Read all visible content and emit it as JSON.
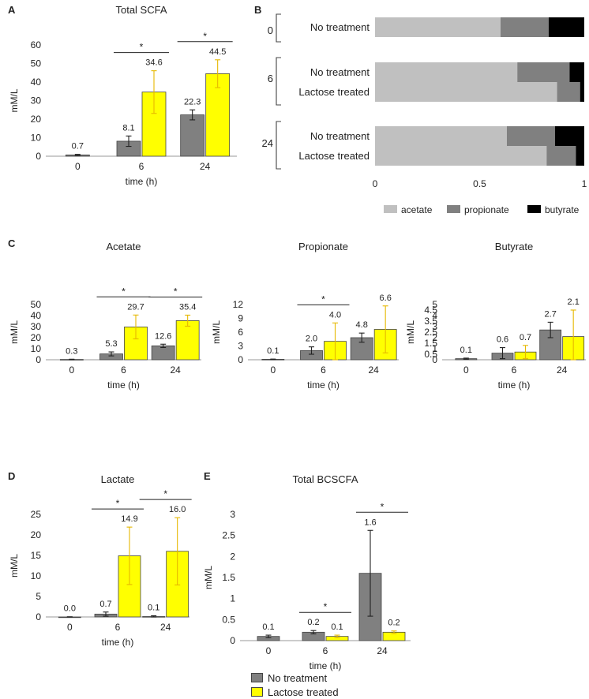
{
  "panels": {
    "A": "A",
    "B": "B",
    "C": "C",
    "D": "D",
    "E": "E"
  },
  "colors": {
    "no_treatment": "#808080",
    "lactose_treated": "#ffff00",
    "acetate": "#c0c0c0",
    "propionate": "#808080",
    "butyrate": "#000000",
    "err_lactose": "#e6b800"
  },
  "legend": {
    "no_treatment": "No treatment",
    "lactose_treated": "Lactose treated"
  },
  "chart_data": [
    {
      "id": "total_scfa",
      "type": "bar",
      "title": "Total SCFA",
      "xlabel": "time (h)",
      "ylabel": "mM/L",
      "categories": [
        "0",
        "6",
        "24"
      ],
      "ylim": [
        0,
        60
      ],
      "yticks": [
        "0",
        "10",
        "20",
        "30",
        "40",
        "50",
        "60"
      ],
      "series": [
        {
          "name": "No treatment",
          "values": [
            0.7,
            8.1,
            22.3
          ],
          "errors": [
            0.3,
            2.8,
            2.7
          ],
          "labels": [
            "0.7",
            "8.1",
            "22.3"
          ]
        },
        {
          "name": "Lactose treated",
          "values": [
            null,
            34.6,
            44.5
          ],
          "errors": [
            null,
            11.5,
            7.5
          ],
          "labels": [
            "",
            "34.6",
            "44.5"
          ]
        }
      ],
      "significance": [
        "6",
        "24"
      ],
      "sig_marker": "*"
    },
    {
      "id": "scfa_proportions",
      "type": "bar",
      "stacked": "horizontal",
      "rows": [
        {
          "group": "0",
          "label": "No treatment",
          "acetate": 0.6,
          "propionate": 0.23,
          "butyrate": 0.17
        },
        {
          "group": "6",
          "label": "No treatment",
          "acetate": 0.68,
          "propionate": 0.25,
          "butyrate": 0.07
        },
        {
          "group": "6",
          "label": "Lactose treated",
          "acetate": 0.87,
          "propionate": 0.11,
          "butyrate": 0.02
        },
        {
          "group": "24",
          "label": "No treatment",
          "acetate": 0.63,
          "propionate": 0.23,
          "butyrate": 0.14
        },
        {
          "group": "24",
          "label": "Lactose treated",
          "acetate": 0.82,
          "propionate": 0.14,
          "butyrate": 0.04
        }
      ],
      "groups": [
        "0",
        "6",
        "24"
      ],
      "xlim": [
        0,
        1
      ],
      "xticks": [
        "0",
        "0.5",
        "1"
      ],
      "legend": [
        "acetate",
        "propionate",
        "butyrate"
      ]
    },
    {
      "id": "acetate",
      "type": "bar",
      "title": "Acetate",
      "xlabel": "time (h)",
      "ylabel": "mM/L",
      "categories": [
        "0",
        "6",
        "24"
      ],
      "ylim": [
        0,
        50
      ],
      "yticks": [
        "0",
        "10",
        "20",
        "30",
        "40",
        "50"
      ],
      "series": [
        {
          "name": "No treatment",
          "values": [
            0.3,
            5.3,
            12.6
          ],
          "errors": [
            0.2,
            1.8,
            1.5
          ],
          "labels": [
            "0.3",
            "5.3",
            "12.6"
          ]
        },
        {
          "name": "Lactose treated",
          "values": [
            null,
            29.7,
            35.4
          ],
          "errors": [
            null,
            10.8,
            5.0
          ],
          "labels": [
            "",
            "29.7",
            "35.4"
          ]
        }
      ],
      "significance": [
        "6",
        "24"
      ],
      "sig_marker": "*"
    },
    {
      "id": "propionate",
      "type": "bar",
      "title": "Propionate",
      "xlabel": "time (h)",
      "ylabel": "mM/L",
      "categories": [
        "0",
        "6",
        "24"
      ],
      "ylim": [
        0,
        12
      ],
      "yticks": [
        "0",
        "3",
        "6",
        "9",
        "12"
      ],
      "series": [
        {
          "name": "No treatment",
          "values": [
            0.1,
            2.0,
            4.8
          ],
          "errors": [
            0.05,
            0.8,
            1.0
          ],
          "labels": [
            "0.1",
            "2.0",
            "4.8"
          ]
        },
        {
          "name": "Lactose treated",
          "values": [
            null,
            4.0,
            6.6
          ],
          "errors": [
            null,
            4.0,
            5.1
          ],
          "labels": [
            "",
            "4.0",
            "6.6"
          ]
        }
      ],
      "significance": [
        "6"
      ],
      "sig_marker": "*"
    },
    {
      "id": "butyrate",
      "type": "bar",
      "title": "Butyrate",
      "xlabel": "time (h)",
      "ylabel": "mM/L",
      "categories": [
        "0",
        "6",
        "24"
      ],
      "ylim": [
        0,
        5
      ],
      "yticks": [
        "0",
        "0.5",
        "1",
        "1.5",
        "2",
        "2.5",
        "3",
        "3.5",
        "4",
        "4.5",
        "5"
      ],
      "series": [
        {
          "name": "No treatment",
          "values": [
            0.1,
            0.6,
            2.7
          ],
          "errors": [
            0.05,
            0.5,
            0.7
          ],
          "labels": [
            "0.1",
            "0.6",
            "2.7"
          ]
        },
        {
          "name": "Lactose treated",
          "values": [
            null,
            0.7,
            2.1
          ],
          "errors": [
            null,
            0.6,
            2.4
          ],
          "labels": [
            "",
            "0.7",
            "2.1"
          ]
        }
      ],
      "significance": [],
      "sig_marker": "*"
    },
    {
      "id": "lactate",
      "type": "bar",
      "title": "Lactate",
      "xlabel": "time (h)",
      "ylabel": "mM/L",
      "categories": [
        "0",
        "6",
        "24"
      ],
      "ylim": [
        0,
        25
      ],
      "yticks": [
        "0",
        "5",
        "10",
        "15",
        "20",
        "25"
      ],
      "series": [
        {
          "name": "No treatment",
          "values": [
            0.0,
            0.7,
            0.1
          ],
          "errors": [
            0.05,
            0.5,
            0.2
          ],
          "labels": [
            "0.0",
            "0.7",
            "0.1"
          ]
        },
        {
          "name": "Lactose treated",
          "values": [
            null,
            14.9,
            16.0
          ],
          "errors": [
            null,
            7.0,
            8.2
          ],
          "labels": [
            "",
            "14.9",
            "16.0"
          ]
        }
      ],
      "significance": [
        "6",
        "24"
      ],
      "sig_marker": "*"
    },
    {
      "id": "total_bcscfa",
      "type": "bar",
      "title": "Total BCSCFA",
      "xlabel": "time (h)",
      "ylabel": "mM/L",
      "categories": [
        "0",
        "6",
        "24"
      ],
      "ylim": [
        0,
        3
      ],
      "yticks": [
        "0",
        "0.5",
        "1",
        "1.5",
        "2",
        "2.5",
        "3"
      ],
      "series": [
        {
          "name": "No treatment",
          "values": [
            0.1,
            0.2,
            1.6
          ],
          "errors": [
            0.03,
            0.04,
            1.02
          ],
          "labels": [
            "0.1",
            "0.2",
            "1.6"
          ]
        },
        {
          "name": "Lactose treated",
          "values": [
            null,
            0.1,
            0.2
          ],
          "errors": [
            null,
            0.03,
            0.03
          ],
          "labels": [
            "",
            "0.1",
            "0.2"
          ]
        }
      ],
      "significance": [
        "6",
        "24"
      ],
      "sig_marker": "*"
    }
  ]
}
